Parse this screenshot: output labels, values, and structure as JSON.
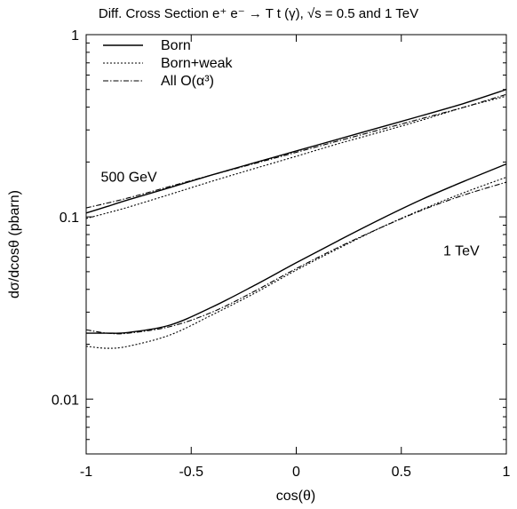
{
  "chart_data": {
    "type": "line",
    "title": "Diff. Cross Section e⁺ e⁻ → T t (γ), √s =  0.5 and 1 TeV",
    "xlabel": "cos(θ)",
    "ylabel": "dσ/dcosθ (pbarn)",
    "xlim": [
      -1,
      1
    ],
    "ylim": [
      0.005,
      1
    ],
    "yscale": "log",
    "grid": false,
    "legend_position": "top-left",
    "x_ticks": [
      -1,
      -0.5,
      0,
      0.5,
      1
    ],
    "x_tick_labels": [
      "-1",
      "-0.5",
      "0",
      "0.5",
      "1"
    ],
    "y_ticks": [
      0.01,
      0.1,
      1
    ],
    "y_tick_labels": [
      "0.01",
      "0.1",
      "1"
    ],
    "legend": [
      {
        "label": "Born",
        "style": "solid"
      },
      {
        "label": "Born+weak",
        "style": "dotted"
      },
      {
        "label": "All O(α³)",
        "style": "dashdot"
      }
    ],
    "annotations": [
      {
        "text": "500 GeV",
        "x": -0.93,
        "y": 0.165
      },
      {
        "text": "1 TeV",
        "x": 0.7,
        "y": 0.065
      }
    ],
    "x": [
      -1,
      -0.9,
      -0.8,
      -0.6,
      -0.4,
      -0.2,
      0,
      0.2,
      0.4,
      0.6,
      0.8,
      1
    ],
    "series": [
      {
        "group": "500 GeV",
        "name": "Born",
        "style": "solid",
        "values": [
          0.105,
          0.114,
          0.124,
          0.145,
          0.17,
          0.198,
          0.23,
          0.267,
          0.31,
          0.36,
          0.42,
          0.5
        ]
      },
      {
        "group": "500 GeV",
        "name": "Born+weak",
        "style": "dotted",
        "values": [
          0.098,
          0.105,
          0.113,
          0.133,
          0.157,
          0.184,
          0.215,
          0.252,
          0.292,
          0.34,
          0.4,
          0.46
        ]
      },
      {
        "group": "500 GeV",
        "name": "All O(α³)",
        "style": "dashdot",
        "values": [
          0.112,
          0.119,
          0.127,
          0.147,
          0.17,
          0.196,
          0.226,
          0.261,
          0.301,
          0.347,
          0.4,
          0.47
        ]
      },
      {
        "group": "1 TeV",
        "name": "Born",
        "style": "solid",
        "values": [
          0.023,
          0.023,
          0.0232,
          0.0255,
          0.032,
          0.042,
          0.056,
          0.074,
          0.097,
          0.125,
          0.157,
          0.195
        ]
      },
      {
        "group": "1 TeV",
        "name": "Born+weak",
        "style": "dotted",
        "values": [
          0.0195,
          0.019,
          0.0195,
          0.0225,
          0.029,
          0.038,
          0.051,
          0.067,
          0.087,
          0.11,
          0.136,
          0.165
        ]
      },
      {
        "group": "1 TeV",
        "name": "All O(α³)",
        "style": "dashdot",
        "values": [
          0.024,
          0.023,
          0.023,
          0.025,
          0.03,
          0.039,
          0.052,
          0.068,
          0.087,
          0.109,
          0.132,
          0.155
        ]
      }
    ]
  }
}
